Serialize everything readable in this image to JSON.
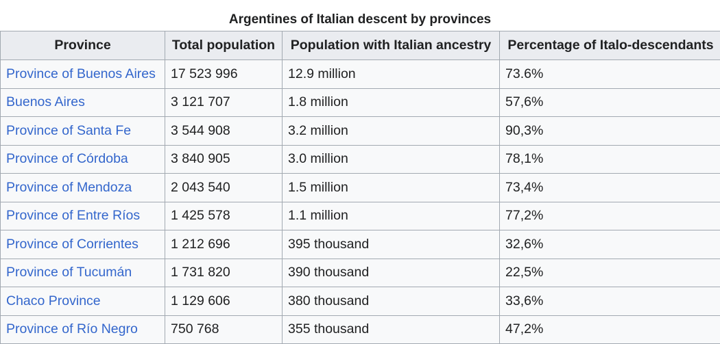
{
  "table": {
    "caption": "Argentines of Italian descent by provinces",
    "headers": [
      "Province",
      "Total population",
      "Population with Italian ancestry",
      "Percentage of Italo-descendants"
    ],
    "rows": [
      {
        "province": "Province of Buenos Aires",
        "total": "17 523 996",
        "italian": "12.9 million",
        "percent": "73.6%"
      },
      {
        "province": "Buenos Aires",
        "total": "3 121 707",
        "italian": "1.8 million",
        "percent": "57,6%"
      },
      {
        "province": "Province of Santa Fe",
        "total": "3 544 908",
        "italian": "3.2 million",
        "percent": "90,3%"
      },
      {
        "province": "Province of Córdoba",
        "total": "3 840 905",
        "italian": "3.0 million",
        "percent": "78,1%"
      },
      {
        "province": "Province of Mendoza",
        "total": "2 043 540",
        "italian": "1.5 million",
        "percent": "73,4%"
      },
      {
        "province": "Province of Entre Ríos",
        "total": "1 425 578",
        "italian": "1.1 million",
        "percent": "77,2%"
      },
      {
        "province": "Province of Corrientes",
        "total": "1 212 696",
        "italian": "395 thousand",
        "percent": "32,6%"
      },
      {
        "province": "Province of Tucumán",
        "total": "1 731 820",
        "italian": "390 thousand",
        "percent": "22,5%"
      },
      {
        "province": "Chaco Province",
        "total": "1 129 606",
        "italian": "380 thousand",
        "percent": "33,6%"
      },
      {
        "province": "Province of Río Negro",
        "total": "750 768",
        "italian": "355 thousand",
        "percent": "47,2%"
      }
    ]
  },
  "colors": {
    "link": "#3366cc",
    "header_bg": "#eaecf0",
    "cell_bg": "#f8f9fa",
    "border": "#a2a9b1",
    "text": "#202122"
  }
}
